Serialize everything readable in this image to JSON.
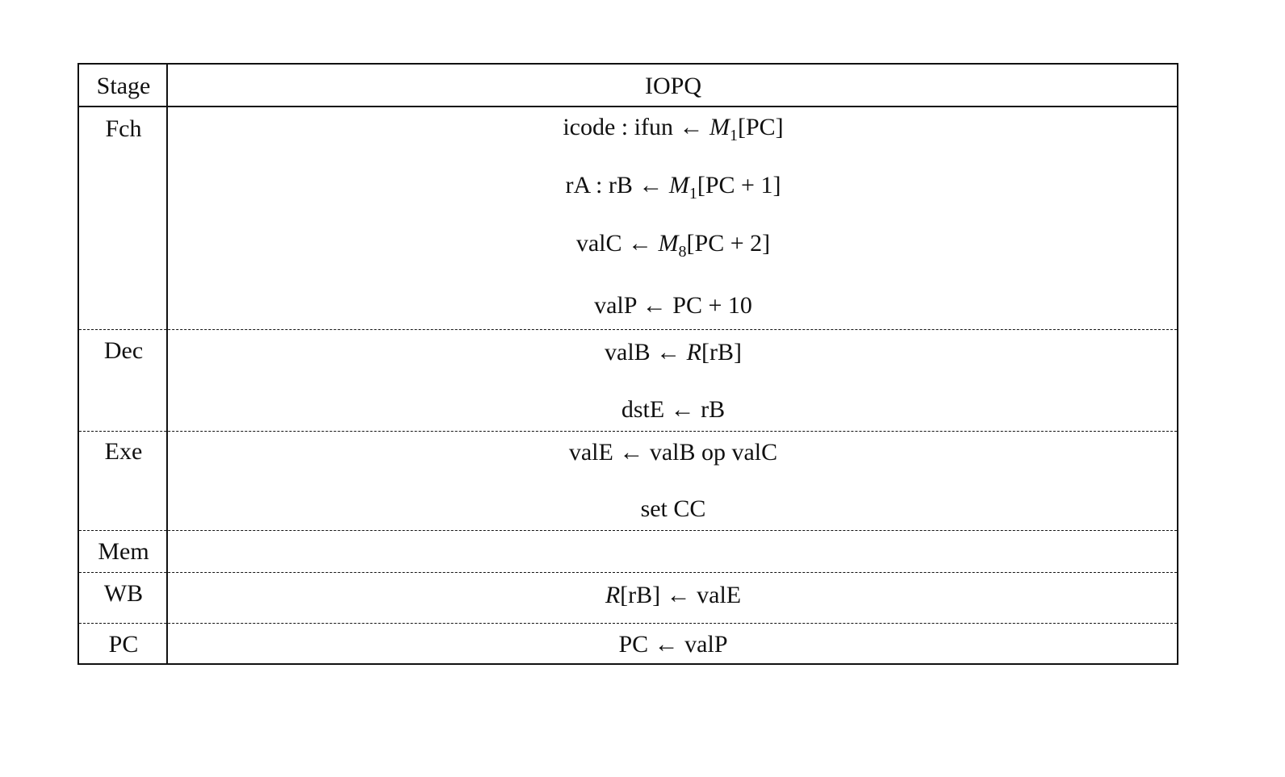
{
  "header": {
    "stage": "Stage",
    "instruction": "IOPQ"
  },
  "stages": [
    {
      "name": "Fch",
      "lines": [
        [
          {
            "t": "icode : ifun ← ",
            "s": "n"
          },
          {
            "t": "M",
            "s": "i"
          },
          {
            "t": "1",
            "s": "sub"
          },
          {
            "t": "[PC]",
            "s": "n"
          }
        ],
        [
          {
            "t": "rA : rB ← ",
            "s": "n"
          },
          {
            "t": "M",
            "s": "i"
          },
          {
            "t": "1",
            "s": "sub"
          },
          {
            "t": "[PC + 1]",
            "s": "n"
          }
        ],
        [
          {
            "t": "valC ← ",
            "s": "n"
          },
          {
            "t": "M",
            "s": "i"
          },
          {
            "t": "8",
            "s": "sub"
          },
          {
            "t": "[PC + 2]",
            "s": "n"
          }
        ],
        [
          {
            "t": "valP ← PC + 10",
            "s": "n"
          }
        ]
      ]
    },
    {
      "name": "Dec",
      "lines": [
        [
          {
            "t": "valB ← ",
            "s": "n"
          },
          {
            "t": "R",
            "s": "i"
          },
          {
            "t": "[rB]",
            "s": "n"
          }
        ],
        [
          {
            "t": "dstE ← rB",
            "s": "n"
          }
        ]
      ]
    },
    {
      "name": "Exe",
      "lines": [
        [
          {
            "t": "valE ← valB op valC",
            "s": "n"
          }
        ],
        [
          {
            "t": "set CC",
            "s": "n"
          }
        ]
      ]
    },
    {
      "name": "Mem",
      "lines": []
    },
    {
      "name": "WB",
      "lines": [
        [
          {
            "t": "R",
            "s": "i"
          },
          {
            "t": "[rB] ← valE",
            "s": "n"
          }
        ]
      ]
    },
    {
      "name": "PC",
      "lines": [
        [
          {
            "t": "PC ← valP",
            "s": "n"
          }
        ]
      ]
    }
  ]
}
